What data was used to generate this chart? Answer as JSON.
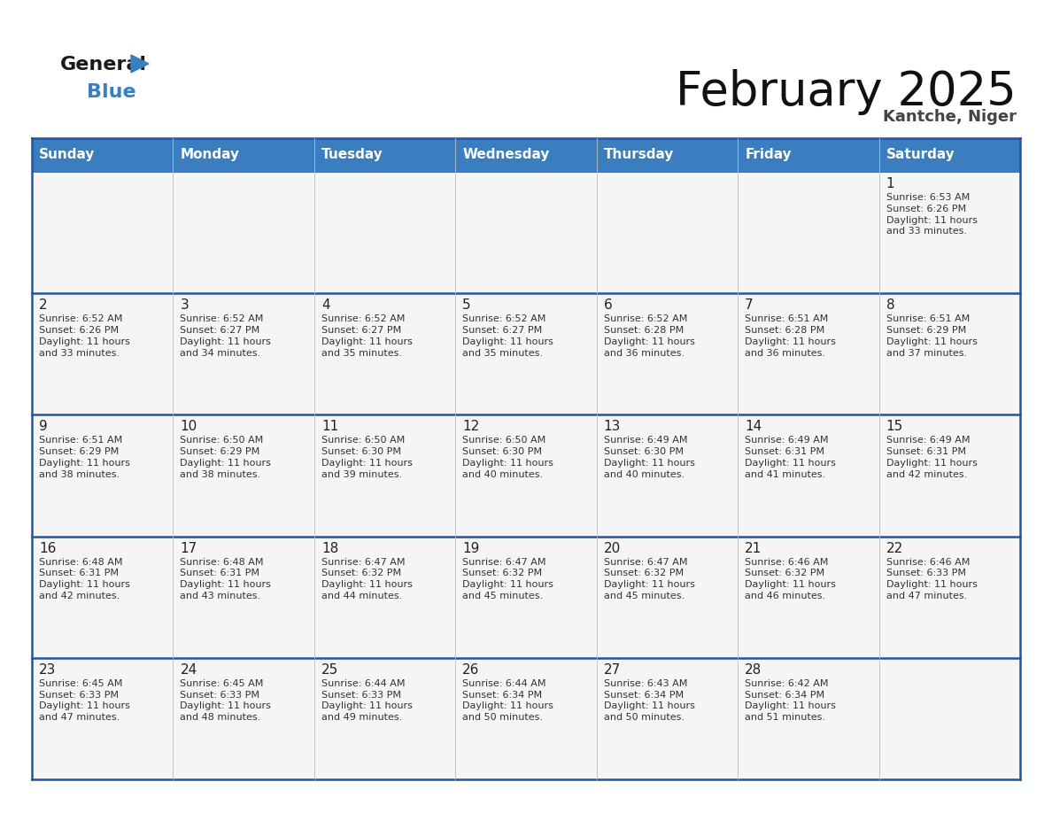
{
  "title": "February 2025",
  "subtitle": "Kantche, Niger",
  "header_color": "#3a7ebf",
  "header_text_color": "#ffffff",
  "days_of_week": [
    "Sunday",
    "Monday",
    "Tuesday",
    "Wednesday",
    "Thursday",
    "Friday",
    "Saturday"
  ],
  "bg_color": "#ffffff",
  "cell_bg": "#f5f5f5",
  "border_color": "#2255a0",
  "text_color": "#333333",
  "calendar": [
    [
      null,
      null,
      null,
      null,
      null,
      null,
      "1\nSunrise: 6:53 AM\nSunset: 6:26 PM\nDaylight: 11 hours\nand 33 minutes."
    ],
    [
      "2\nSunrise: 6:52 AM\nSunset: 6:26 PM\nDaylight: 11 hours\nand 33 minutes.",
      "3\nSunrise: 6:52 AM\nSunset: 6:27 PM\nDaylight: 11 hours\nand 34 minutes.",
      "4\nSunrise: 6:52 AM\nSunset: 6:27 PM\nDaylight: 11 hours\nand 35 minutes.",
      "5\nSunrise: 6:52 AM\nSunset: 6:27 PM\nDaylight: 11 hours\nand 35 minutes.",
      "6\nSunrise: 6:52 AM\nSunset: 6:28 PM\nDaylight: 11 hours\nand 36 minutes.",
      "7\nSunrise: 6:51 AM\nSunset: 6:28 PM\nDaylight: 11 hours\nand 36 minutes.",
      "8\nSunrise: 6:51 AM\nSunset: 6:29 PM\nDaylight: 11 hours\nand 37 minutes."
    ],
    [
      "9\nSunrise: 6:51 AM\nSunset: 6:29 PM\nDaylight: 11 hours\nand 38 minutes.",
      "10\nSunrise: 6:50 AM\nSunset: 6:29 PM\nDaylight: 11 hours\nand 38 minutes.",
      "11\nSunrise: 6:50 AM\nSunset: 6:30 PM\nDaylight: 11 hours\nand 39 minutes.",
      "12\nSunrise: 6:50 AM\nSunset: 6:30 PM\nDaylight: 11 hours\nand 40 minutes.",
      "13\nSunrise: 6:49 AM\nSunset: 6:30 PM\nDaylight: 11 hours\nand 40 minutes.",
      "14\nSunrise: 6:49 AM\nSunset: 6:31 PM\nDaylight: 11 hours\nand 41 minutes.",
      "15\nSunrise: 6:49 AM\nSunset: 6:31 PM\nDaylight: 11 hours\nand 42 minutes."
    ],
    [
      "16\nSunrise: 6:48 AM\nSunset: 6:31 PM\nDaylight: 11 hours\nand 42 minutes.",
      "17\nSunrise: 6:48 AM\nSunset: 6:31 PM\nDaylight: 11 hours\nand 43 minutes.",
      "18\nSunrise: 6:47 AM\nSunset: 6:32 PM\nDaylight: 11 hours\nand 44 minutes.",
      "19\nSunrise: 6:47 AM\nSunset: 6:32 PM\nDaylight: 11 hours\nand 45 minutes.",
      "20\nSunrise: 6:47 AM\nSunset: 6:32 PM\nDaylight: 11 hours\nand 45 minutes.",
      "21\nSunrise: 6:46 AM\nSunset: 6:32 PM\nDaylight: 11 hours\nand 46 minutes.",
      "22\nSunrise: 6:46 AM\nSunset: 6:33 PM\nDaylight: 11 hours\nand 47 minutes."
    ],
    [
      "23\nSunrise: 6:45 AM\nSunset: 6:33 PM\nDaylight: 11 hours\nand 47 minutes.",
      "24\nSunrise: 6:45 AM\nSunset: 6:33 PM\nDaylight: 11 hours\nand 48 minutes.",
      "25\nSunrise: 6:44 AM\nSunset: 6:33 PM\nDaylight: 11 hours\nand 49 minutes.",
      "26\nSunrise: 6:44 AM\nSunset: 6:34 PM\nDaylight: 11 hours\nand 50 minutes.",
      "27\nSunrise: 6:43 AM\nSunset: 6:34 PM\nDaylight: 11 hours\nand 50 minutes.",
      "28\nSunrise: 6:42 AM\nSunset: 6:34 PM\nDaylight: 11 hours\nand 51 minutes.",
      null
    ]
  ]
}
